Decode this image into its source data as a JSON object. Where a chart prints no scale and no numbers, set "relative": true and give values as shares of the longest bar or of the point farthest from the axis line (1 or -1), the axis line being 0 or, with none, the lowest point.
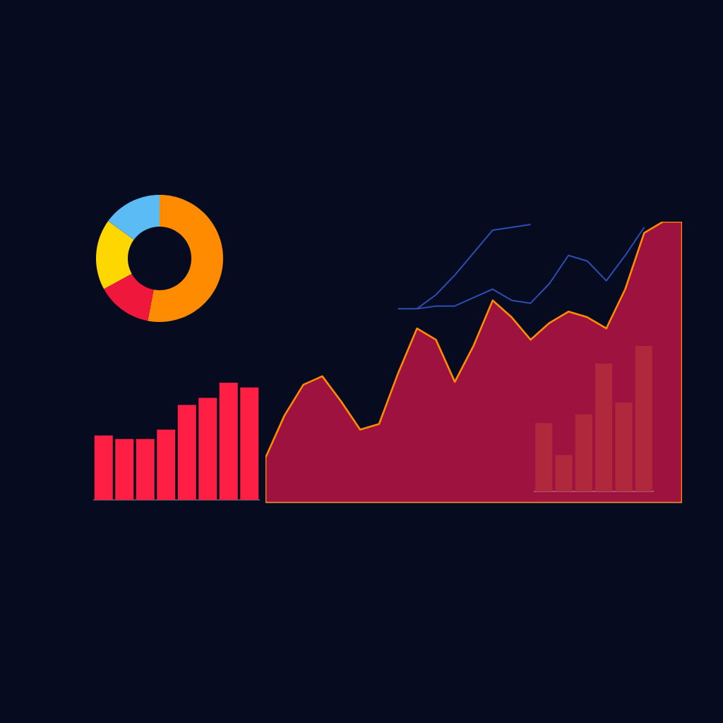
{
  "chart_data": [
    {
      "type": "donut",
      "categories": [
        null,
        null,
        null,
        null
      ],
      "values": [
        53,
        14,
        18,
        15
      ],
      "colors": [
        "#ff8c00",
        "#f0173c",
        "#ffd700",
        "#5bbcf5"
      ]
    },
    {
      "type": "bar",
      "relative": true,
      "categories": [
        null,
        null,
        null,
        null,
        null,
        null,
        null,
        null
      ],
      "values": [
        0.55,
        0.52,
        0.52,
        0.6,
        0.81,
        0.87,
        1.0,
        0.96
      ],
      "color": "#ff1f45"
    },
    {
      "type": "area",
      "relative": true,
      "categories": [
        null,
        null,
        null,
        null,
        null,
        null,
        null,
        null,
        null,
        null,
        null,
        null,
        null,
        null,
        null,
        null,
        null,
        null,
        null,
        null,
        null,
        null,
        null
      ],
      "series": [
        {
          "type": "area",
          "color": "#9e1240",
          "values": [
            0.16,
            0.31,
            0.42,
            0.45,
            0.36,
            0.26,
            0.28,
            0.46,
            0.62,
            0.58,
            0.43,
            0.56,
            0.72,
            0.66,
            0.58,
            0.64,
            0.68,
            0.66,
            0.62,
            0.76,
            0.96,
            1.0,
            1.0
          ]
        },
        {
          "type": "line",
          "color": "#2c4fb5",
          "values": [
            null,
            null,
            null,
            null,
            null,
            null,
            null,
            0.69,
            0.69,
            0.7,
            0.7,
            0.73,
            0.76,
            0.72,
            0.71,
            0.78,
            0.88,
            0.86,
            0.79,
            0.88,
            0.98,
            null,
            null
          ]
        },
        {
          "type": "line",
          "color": "#2c4fb5",
          "values": [
            null,
            null,
            null,
            null,
            null,
            null,
            null,
            null,
            0.69,
            0.74,
            0.81,
            0.89,
            0.97,
            0.98,
            0.99,
            null,
            null,
            null,
            null,
            null,
            null,
            null,
            null
          ]
        }
      ]
    },
    {
      "type": "bar",
      "relative": true,
      "categories": [
        null,
        null,
        null,
        null,
        null,
        null
      ],
      "values": [
        0.47,
        0.25,
        0.53,
        0.88,
        0.61,
        1.0
      ],
      "color": "#b0283c"
    }
  ]
}
